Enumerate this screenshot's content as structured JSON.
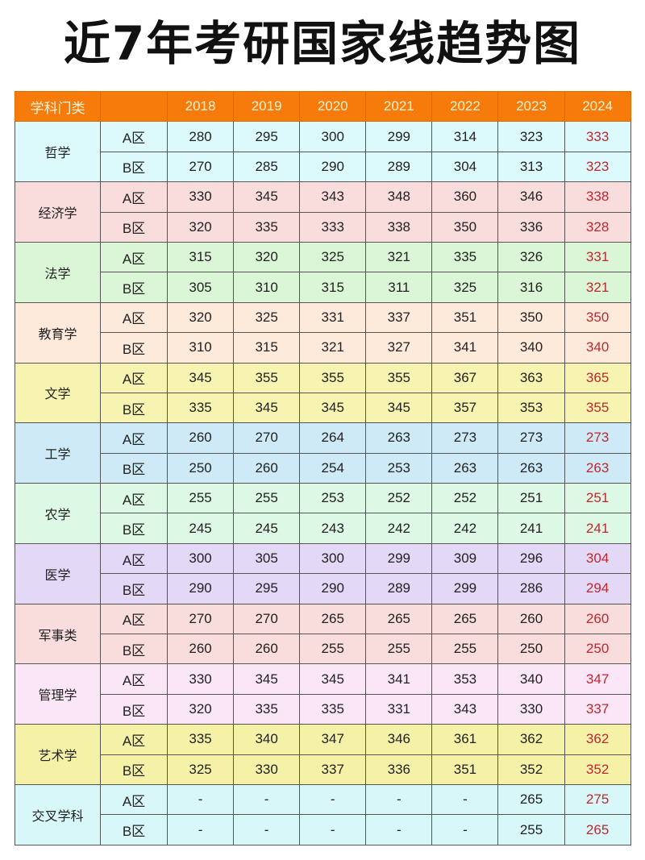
{
  "title": "近7年考研国家线趋势图",
  "header": {
    "category": "学科门类",
    "zone": "",
    "years": [
      "2018",
      "2019",
      "2020",
      "2021",
      "2022",
      "2023",
      "2024"
    ]
  },
  "colors": {
    "header": "#f77b0a",
    "highlight_2024": "#c0282f"
  },
  "groups": [
    {
      "subject": "哲学",
      "color": "#dcf9fb",
      "rows": [
        {
          "zone": "A区",
          "values": [
            "280",
            "295",
            "300",
            "299",
            "314",
            "323",
            "333"
          ]
        },
        {
          "zone": "B区",
          "values": [
            "270",
            "285",
            "290",
            "289",
            "304",
            "313",
            "323"
          ]
        }
      ]
    },
    {
      "subject": "经济学",
      "color": "#f9dcdc",
      "rows": [
        {
          "zone": "A区",
          "values": [
            "330",
            "345",
            "343",
            "348",
            "360",
            "346",
            "338"
          ]
        },
        {
          "zone": "B区",
          "values": [
            "320",
            "335",
            "333",
            "338",
            "350",
            "336",
            "328"
          ]
        }
      ]
    },
    {
      "subject": "法学",
      "color": "#dbf6d6",
      "rows": [
        {
          "zone": "A区",
          "values": [
            "315",
            "320",
            "325",
            "321",
            "335",
            "326",
            "331"
          ]
        },
        {
          "zone": "B区",
          "values": [
            "305",
            "310",
            "315",
            "311",
            "325",
            "316",
            "321"
          ]
        }
      ]
    },
    {
      "subject": "教育学",
      "color": "#fdeadb",
      "rows": [
        {
          "zone": "A区",
          "values": [
            "320",
            "325",
            "331",
            "337",
            "351",
            "350",
            "350"
          ]
        },
        {
          "zone": "B区",
          "values": [
            "310",
            "315",
            "321",
            "327",
            "341",
            "340",
            "340"
          ]
        }
      ]
    },
    {
      "subject": "文学",
      "color": "#f7f3b0",
      "rows": [
        {
          "zone": "A区",
          "values": [
            "345",
            "355",
            "355",
            "355",
            "367",
            "363",
            "365"
          ]
        },
        {
          "zone": "B区",
          "values": [
            "335",
            "345",
            "345",
            "345",
            "357",
            "353",
            "355"
          ]
        }
      ]
    },
    {
      "subject": "工学",
      "color": "#cdeaf6",
      "rows": [
        {
          "zone": "A区",
          "values": [
            "260",
            "270",
            "264",
            "263",
            "273",
            "273",
            "273"
          ]
        },
        {
          "zone": "B区",
          "values": [
            "250",
            "260",
            "254",
            "253",
            "263",
            "263",
            "263"
          ]
        }
      ]
    },
    {
      "subject": "农学",
      "color": "#ddf8e4",
      "rows": [
        {
          "zone": "A区",
          "values": [
            "255",
            "255",
            "253",
            "252",
            "252",
            "251",
            "251"
          ]
        },
        {
          "zone": "B区",
          "values": [
            "245",
            "245",
            "243",
            "242",
            "242",
            "241",
            "241"
          ]
        }
      ]
    },
    {
      "subject": "医学",
      "color": "#e3d8f6",
      "rows": [
        {
          "zone": "A区",
          "values": [
            "300",
            "305",
            "300",
            "299",
            "309",
            "296",
            "304"
          ]
        },
        {
          "zone": "B区",
          "values": [
            "290",
            "295",
            "290",
            "289",
            "299",
            "286",
            "294"
          ]
        }
      ]
    },
    {
      "subject": "军事类",
      "color": "#f9dcdc",
      "rows": [
        {
          "zone": "A区",
          "values": [
            "270",
            "270",
            "265",
            "265",
            "265",
            "260",
            "260"
          ]
        },
        {
          "zone": "B区",
          "values": [
            "260",
            "260",
            "255",
            "255",
            "255",
            "250",
            "250"
          ]
        }
      ]
    },
    {
      "subject": "管理学",
      "color": "#fbe6f7",
      "rows": [
        {
          "zone": "A区",
          "values": [
            "330",
            "345",
            "345",
            "341",
            "353",
            "340",
            "347"
          ]
        },
        {
          "zone": "B区",
          "values": [
            "320",
            "335",
            "335",
            "331",
            "343",
            "330",
            "337"
          ]
        }
      ]
    },
    {
      "subject": "艺术学",
      "color": "#f5f2a8",
      "rows": [
        {
          "zone": "A区",
          "values": [
            "335",
            "340",
            "347",
            "346",
            "361",
            "362",
            "362"
          ]
        },
        {
          "zone": "B区",
          "values": [
            "325",
            "330",
            "337",
            "336",
            "351",
            "352",
            "352"
          ]
        }
      ]
    },
    {
      "subject": "交叉学科",
      "color": "#d8f7f8",
      "rows": [
        {
          "zone": "A区",
          "values": [
            "-",
            "-",
            "-",
            "-",
            "-",
            "265",
            "275"
          ]
        },
        {
          "zone": "B区",
          "values": [
            "-",
            "-",
            "-",
            "-",
            "-",
            "255",
            "265"
          ]
        }
      ]
    }
  ]
}
